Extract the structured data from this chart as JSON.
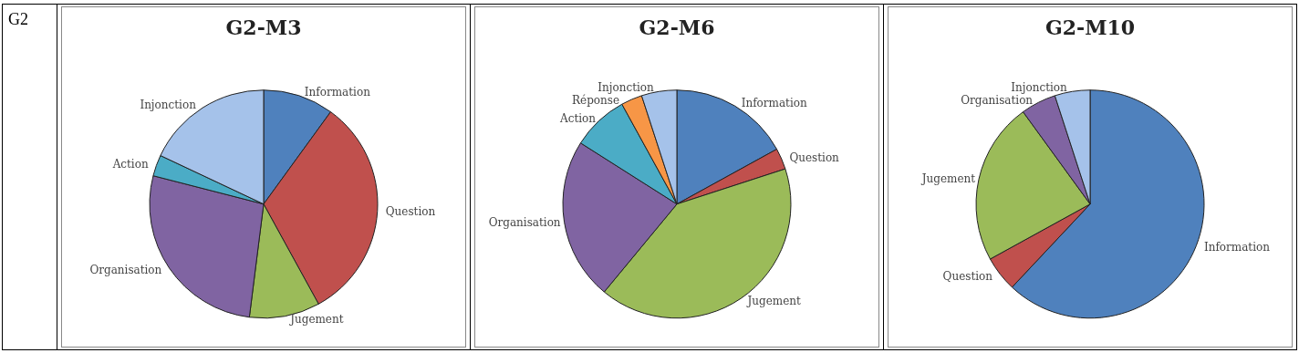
{
  "chart_data": [
    {
      "type": "pie",
      "title": "G2-M3",
      "annotations": [
        "G2"
      ],
      "categories": [
        "Information",
        "Question",
        "Jugement",
        "Organisation",
        "Action",
        "Injonction"
      ],
      "values": [
        10,
        32,
        10,
        27,
        3,
        18
      ],
      "colors": [
        "#4f81bd",
        "#c0504d",
        "#9bbb59",
        "#8064a2",
        "#4bacc6",
        "#a5c2ea"
      ]
    },
    {
      "type": "pie",
      "title": "G2-M6",
      "categories": [
        "Information",
        "Question",
        "Jugement",
        "Organisation",
        "Action",
        "Réponse",
        "Injonction"
      ],
      "values": [
        17,
        3,
        41,
        23,
        8,
        3,
        5
      ],
      "colors": [
        "#4f81bd",
        "#c0504d",
        "#9bbb59",
        "#8064a2",
        "#4bacc6",
        "#f79646",
        "#a5c2ea"
      ]
    },
    {
      "type": "pie",
      "title": "G2-M10",
      "categories": [
        "Information",
        "Question",
        "Jugement",
        "Organisation",
        "Injonction"
      ],
      "values": [
        62,
        5,
        23,
        5,
        5
      ],
      "colors": [
        "#4f81bd",
        "#c0504d",
        "#9bbb59",
        "#8064a2",
        "#a5c2ea"
      ]
    }
  ]
}
